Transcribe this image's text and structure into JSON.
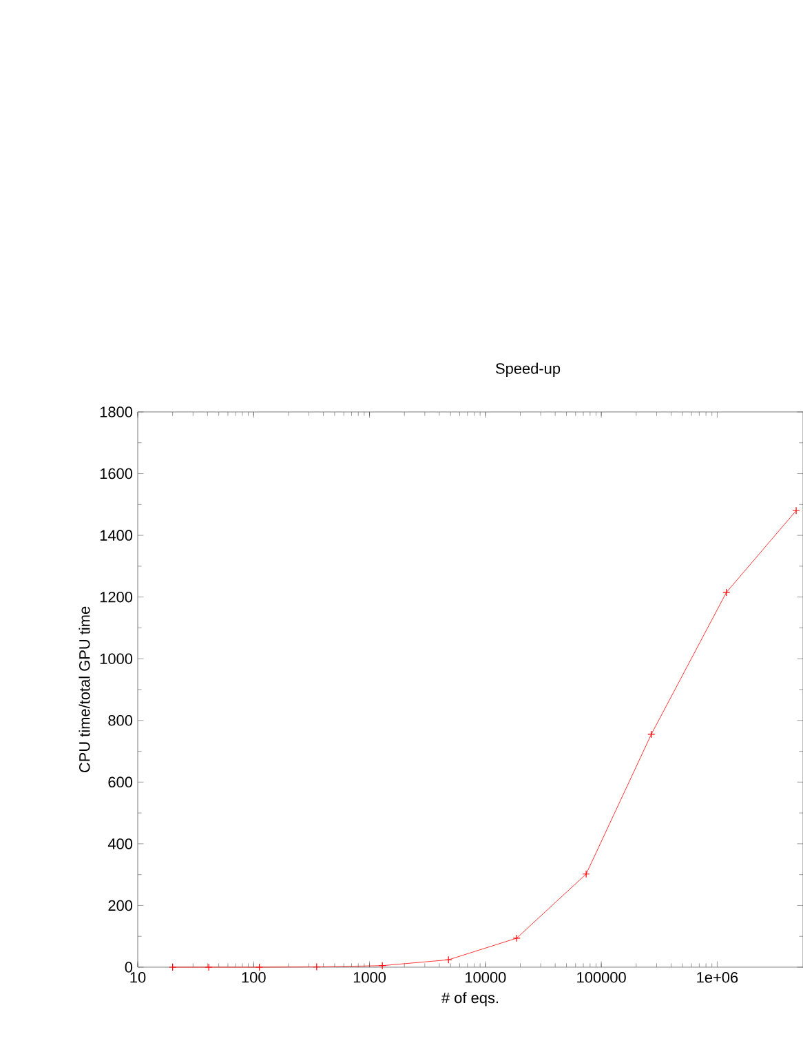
{
  "chart_data": {
    "type": "line",
    "title": "Speed-up",
    "xlabel": "# of eqs.",
    "ylabel": "CPU time/total GPU time",
    "log": "x",
    "xlim": [
      10,
      5500000
    ],
    "xticks": [
      10,
      100,
      1000,
      10000,
      100000,
      {
        "value": 1000000,
        "label": "1e+06"
      }
    ],
    "ylim": [
      0,
      1800
    ],
    "yticks": [
      0,
      200,
      400,
      600,
      800,
      1000,
      1200,
      1400,
      1600,
      1800
    ],
    "marker": "cross",
    "line_style": "solid",
    "grid": false,
    "legend": false,
    "series": [
      {
        "color": "#ff0000",
        "x": [
          20,
          41,
          112,
          350,
          1290,
          4800,
          18600,
          74000,
          270000,
          1200000,
          4800000
        ],
        "values": [
          0,
          0,
          0,
          1,
          5,
          24,
          94,
          302,
          755,
          1215,
          1480
        ]
      }
    ]
  }
}
